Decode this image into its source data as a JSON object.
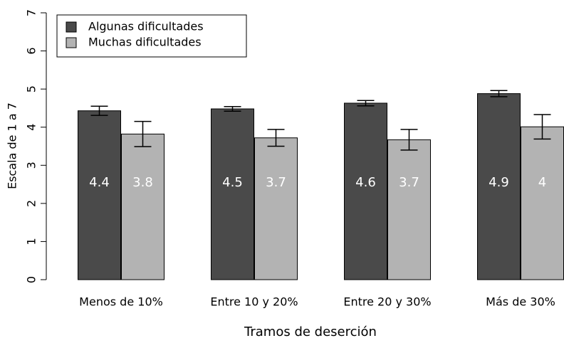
{
  "chart_data": {
    "type": "bar",
    "y_label": "Escala de 1 a 7",
    "x_label": "Tramos de deserción",
    "categories": [
      "Menos de 10%",
      "Entre 10 y 20%",
      "Entre 20 y 30%",
      "Más de 30%"
    ],
    "series": [
      {
        "name": "Algunas dificultades",
        "color": "#4a4a4a",
        "values": [
          4.43,
          4.48,
          4.63,
          4.88
        ],
        "value_labels": [
          "4.4",
          "4.5",
          "4.6",
          "4.9"
        ],
        "errors": [
          0.12,
          0.06,
          0.07,
          0.08
        ]
      },
      {
        "name": "Muchas dificultades",
        "color": "#b3b3b3",
        "values": [
          3.82,
          3.72,
          3.67,
          4.01
        ],
        "value_labels": [
          "3.8",
          "3.7",
          "3.7",
          "4"
        ],
        "errors": [
          0.33,
          0.22,
          0.27,
          0.32
        ]
      }
    ],
    "ylim": [
      0,
      7
    ],
    "yticks": [
      0,
      1,
      2,
      3,
      4,
      5,
      6,
      7
    ],
    "legend": "top-left"
  }
}
